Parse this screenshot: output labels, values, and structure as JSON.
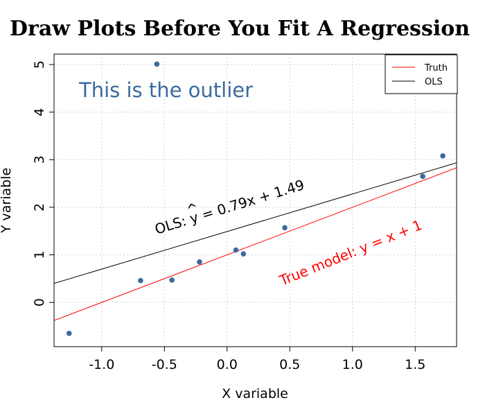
{
  "chart_data": {
    "type": "scatter",
    "title": "Draw Plots Before You Fit A Regression",
    "xlabel": "X variable",
    "ylabel": "Y variable",
    "xlim": [
      -1.38,
      1.83
    ],
    "ylim": [
      -0.93,
      5.22
    ],
    "x_ticks": [
      -1.0,
      -0.5,
      0.0,
      0.5,
      1.0,
      1.5
    ],
    "x_tick_labels": [
      "-1.0",
      "-0.5",
      "0.0",
      "0.5",
      "1.0",
      "1.5"
    ],
    "y_ticks": [
      0,
      1,
      2,
      3,
      4,
      5
    ],
    "y_tick_labels": [
      "0",
      "1",
      "2",
      "3",
      "4",
      "5"
    ],
    "grid": true,
    "points": [
      {
        "x": -1.26,
        "y": -0.65
      },
      {
        "x": -0.69,
        "y": 0.46
      },
      {
        "x": -0.56,
        "y": 5.01
      },
      {
        "x": -0.44,
        "y": 0.47
      },
      {
        "x": -0.22,
        "y": 0.85
      },
      {
        "x": 0.07,
        "y": 1.1
      },
      {
        "x": 0.13,
        "y": 1.02
      },
      {
        "x": 0.46,
        "y": 1.57
      },
      {
        "x": 1.56,
        "y": 2.65
      },
      {
        "x": 1.72,
        "y": 3.08
      }
    ],
    "lines": [
      {
        "name": "Truth",
        "slope": 1.0,
        "intercept": 1.0,
        "color": "#ff0000"
      },
      {
        "name": "OLS",
        "slope": 0.79,
        "intercept": 1.49,
        "color": "#000000"
      }
    ],
    "legend": {
      "position": "top-right",
      "entries": [
        "Truth",
        "OLS"
      ]
    },
    "annotations": {
      "outlier": "This is the outlier",
      "ols_prefix": "OLS: ",
      "ols_yhat": "y",
      "ols_hat": "^",
      "ols_equation": " = 0.79x + 1.49",
      "truth": "True model: y = x + 1"
    },
    "colors": {
      "point": "#3a6a9e",
      "annotation_blue": "#3a6a9e",
      "truth": "#ff0000",
      "ols": "#000000",
      "grid": "#d3d3d3"
    }
  }
}
